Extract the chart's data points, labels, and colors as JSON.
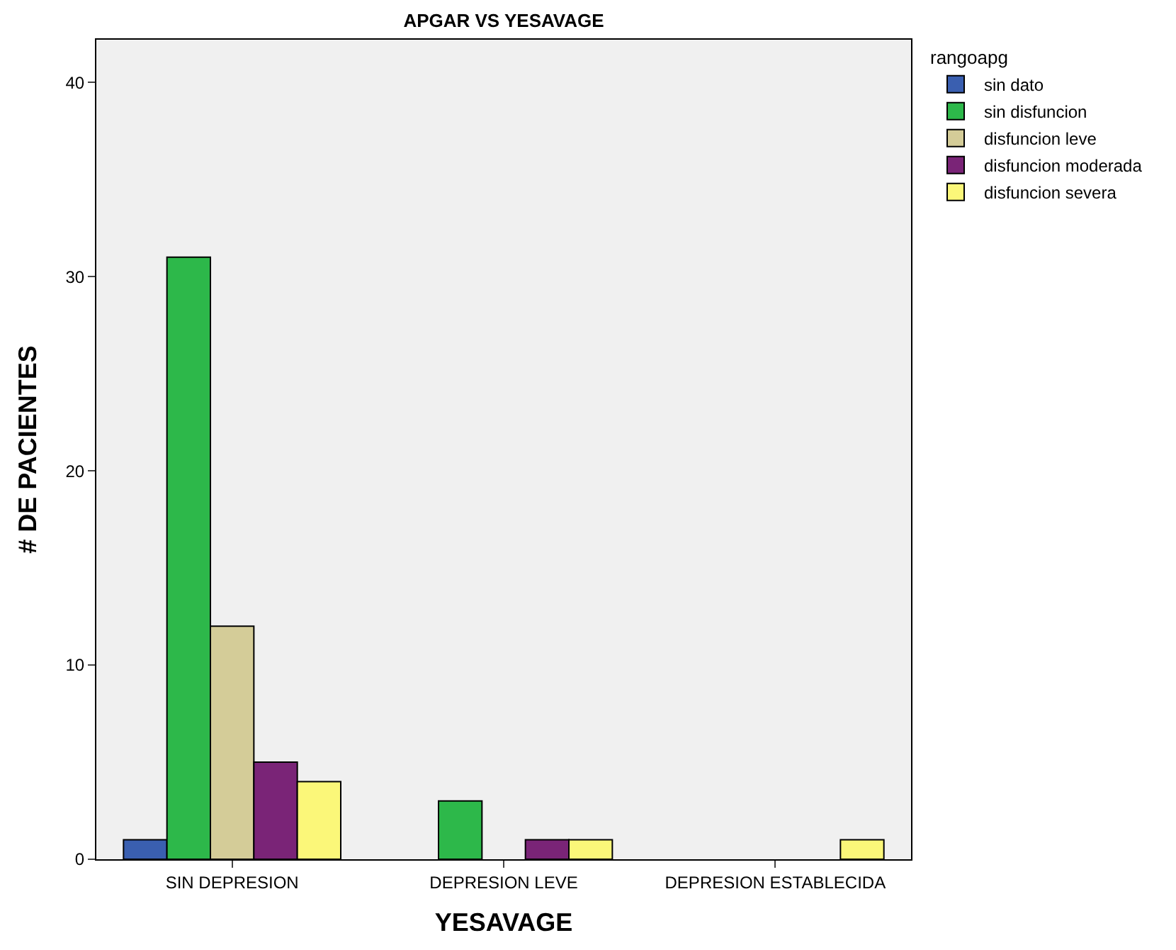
{
  "chart_data": {
    "type": "bar",
    "title": "APGAR VS YESAVAGE",
    "xlabel": "YESAVAGE",
    "ylabel": "# DE PACIENTES",
    "legend_title": "rangoapg",
    "categories": [
      "SIN DEPRESION",
      "DEPRESION LEVE",
      "DEPRESION ESTABLECIDA"
    ],
    "series": [
      {
        "name": "sin dato",
        "color": "#3a5fb0",
        "values": [
          1,
          null,
          null
        ]
      },
      {
        "name": "sin disfuncion",
        "color": "#2db84a",
        "values": [
          31,
          3,
          null
        ]
      },
      {
        "name": "disfuncion leve",
        "color": "#d4cc98",
        "values": [
          12,
          null,
          null
        ]
      },
      {
        "name": "disfuncion moderada",
        "color": "#7a2477",
        "values": [
          5,
          1,
          null
        ]
      },
      {
        "name": "disfuncion severa",
        "color": "#fbf779",
        "values": [
          4,
          1,
          1
        ]
      }
    ],
    "ylim": [
      0,
      42.2
    ],
    "yticks": [
      0,
      10,
      20,
      30,
      40
    ],
    "grid": false,
    "legend": "top right"
  }
}
